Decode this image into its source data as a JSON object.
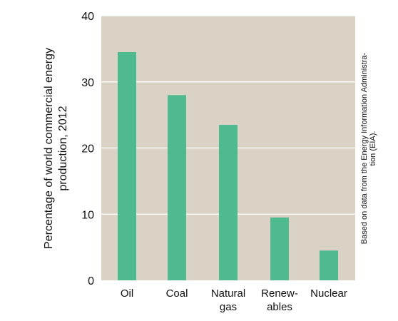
{
  "chart_data": {
    "type": "bar",
    "categories": [
      [
        "Oil"
      ],
      [
        "Coal"
      ],
      [
        "Natural",
        "gas"
      ],
      [
        "Renew-",
        "ables"
      ],
      [
        "Nuclear"
      ]
    ],
    "values": [
      34.5,
      28.0,
      23.5,
      9.5,
      4.5
    ],
    "ylabel_lines": [
      "Percentage of world commercial energy",
      "production, 2012"
    ],
    "ylim": [
      0,
      40
    ],
    "yticks": [
      0,
      10,
      20,
      30,
      40
    ],
    "grid": true,
    "source_note_lines": [
      "Based on data from the Energy Information Administra-",
      "tion (EIA)."
    ],
    "colors": {
      "plot_background": "#d9d2c5",
      "bar": "#4fb98f",
      "grid": "#ffffff"
    }
  }
}
